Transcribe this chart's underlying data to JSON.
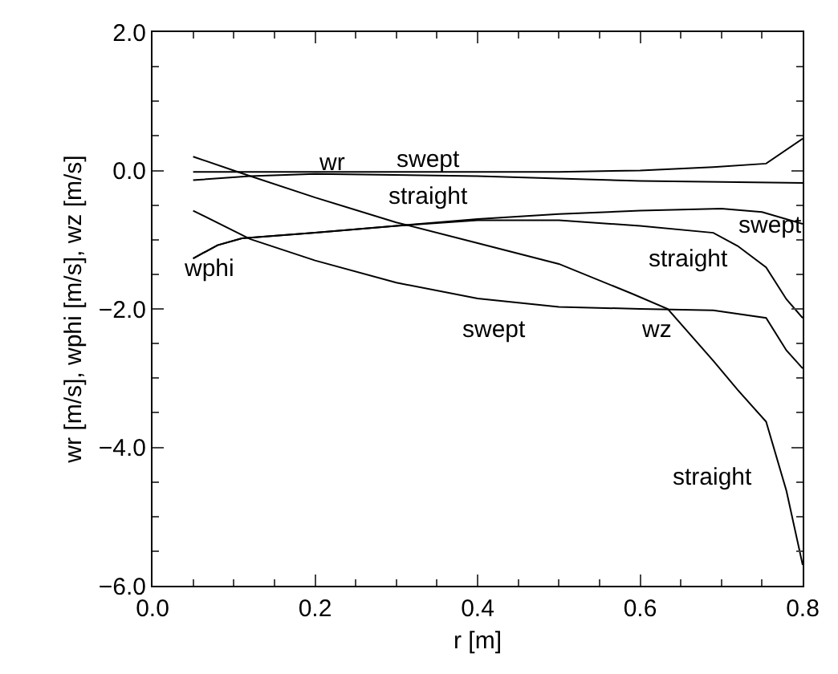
{
  "chart_data": {
    "type": "line",
    "xlabel": "r [m]",
    "ylabel": "wr [m/s], wphi [m/s], wz [m/s]",
    "xlim": [
      0,
      0.8
    ],
    "ylim": [
      -6,
      2
    ],
    "xticks": [
      {
        "value": 0,
        "label": "0.0"
      },
      {
        "value": 0.2,
        "label": "0.2"
      },
      {
        "value": 0.4,
        "label": "0.4"
      },
      {
        "value": 0.6,
        "label": "0.6"
      },
      {
        "value": 0.8,
        "label": "0.8"
      }
    ],
    "yticks": [
      {
        "value": -6,
        "label": "−6.0"
      },
      {
        "value": -4,
        "label": "−4.0"
      },
      {
        "value": -2,
        "label": "−2.0"
      },
      {
        "value": 0,
        "label": "0.0"
      },
      {
        "value": 2,
        "label": "2.0"
      }
    ],
    "grid": false,
    "marker": "none",
    "line_style": "solid",
    "series": [
      {
        "color": "#000000",
        "x": [
          0.05,
          0.3,
          0.5,
          0.6,
          0.69,
          0.755,
          0.8
        ],
        "values": [
          -0.02,
          -0.02,
          -0.02,
          0.0,
          0.05,
          0.1,
          0.46
        ]
      },
      {
        "color": "#000000",
        "x": [
          0.05,
          0.12,
          0.2,
          0.4,
          0.6,
          0.8
        ],
        "values": [
          -0.14,
          -0.08,
          -0.05,
          -0.08,
          -0.15,
          -0.18
        ]
      },
      {
        "color": "#000000",
        "x": [
          0.05,
          0.08,
          0.11,
          0.2,
          0.3,
          0.4,
          0.5,
          0.6,
          0.7,
          0.75,
          0.8
        ],
        "values": [
          -1.27,
          -1.08,
          -0.98,
          -0.9,
          -0.8,
          -0.7,
          -0.63,
          -0.58,
          -0.55,
          -0.6,
          -0.77
        ]
      },
      {
        "color": "#000000",
        "x": [
          0.05,
          0.08,
          0.11,
          0.2,
          0.3,
          0.4,
          0.5,
          0.6,
          0.69,
          0.72,
          0.755,
          0.78,
          0.8
        ],
        "values": [
          -1.27,
          -1.08,
          -0.98,
          -0.9,
          -0.8,
          -0.72,
          -0.72,
          -0.8,
          -0.9,
          -1.09,
          -1.4,
          -1.86,
          -2.13
        ]
      },
      {
        "color": "#000000",
        "x": [
          0.05,
          0.11,
          0.2,
          0.3,
          0.4,
          0.5,
          0.59,
          0.634,
          0.69,
          0.72,
          0.755,
          0.78,
          0.8
        ],
        "values": [
          0.2,
          -0.04,
          -0.39,
          -0.75,
          -1.05,
          -1.35,
          -1.78,
          -2.0,
          -2.75,
          -3.17,
          -3.63,
          -4.63,
          -5.7
        ]
      },
      {
        "color": "#000000",
        "x": [
          0.05,
          0.12,
          0.2,
          0.3,
          0.4,
          0.5,
          0.6,
          0.69,
          0.755,
          0.78,
          0.8
        ],
        "values": [
          -0.58,
          -0.99,
          -1.3,
          -1.62,
          -1.85,
          -1.97,
          -2.0,
          -2.02,
          -2.13,
          -2.6,
          -2.86
        ]
      }
    ],
    "annotations": [
      "wr",
      "swept",
      "straight",
      "wphi",
      "swept",
      "straight",
      "swept",
      "wz",
      "straight"
    ]
  }
}
